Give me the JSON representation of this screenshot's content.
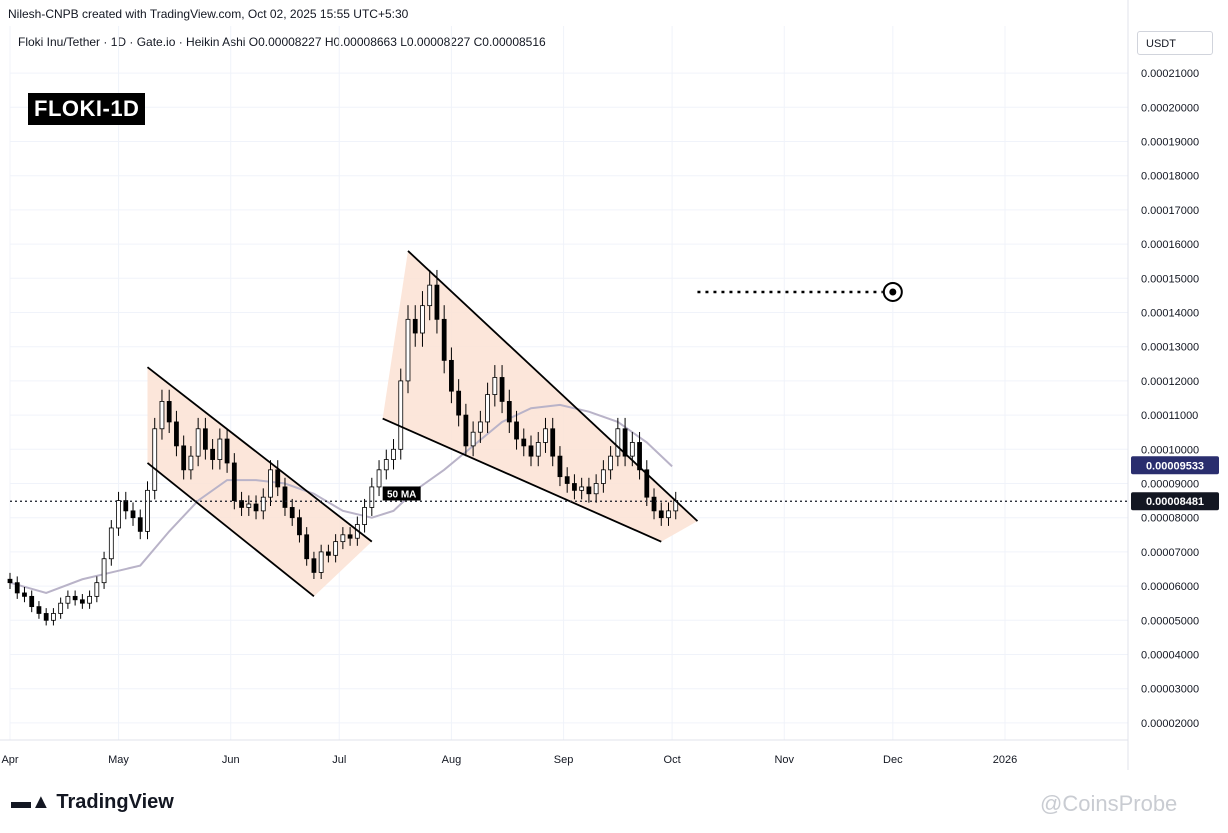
{
  "header": {
    "attribution": "Nilesh-CNPB created with TradingView.com, Oct 02, 2025 15:55 UTC+5:30",
    "symbol_info": "Floki Inu/Tether · 1D · Gate.io · Heikin Ashi  O0.00008227  H0.00008663  L0.00008227  C0.00008516"
  },
  "badge": "FLOKI-1D",
  "currency": "USDT",
  "footer": {
    "brand": "TradingView",
    "watermark": "@CoinsProbe"
  },
  "chart_data": {
    "type": "candlestick",
    "price_axis": {
      "min": 1.5e-05,
      "max": 0.000215,
      "ticks": [
        "0.00021000",
        "0.00020000",
        "0.00019000",
        "0.00018000",
        "0.00017000",
        "0.00016000",
        "0.00015000",
        "0.00014000",
        "0.00013000",
        "0.00012000",
        "0.00011000",
        "0.00010000",
        "0.00009000",
        "0.00008000",
        "0.00007000",
        "0.00006000",
        "0.00005000",
        "0.00004000",
        "0.00003000",
        "0.00002000"
      ],
      "tick_values": [
        0.00021,
        0.0002,
        0.00019,
        0.00018,
        0.00017,
        0.00016,
        0.00015,
        0.00014,
        0.00013,
        0.00012,
        0.00011,
        0.0001,
        9e-05,
        8e-05,
        7e-05,
        6e-05,
        5e-05,
        4e-05,
        3e-05,
        2e-05
      ]
    },
    "time_axis": {
      "labels": [
        "Apr",
        "May",
        "Jun",
        "Jul",
        "Aug",
        "Sep",
        "Oct",
        "Nov",
        "Dec",
        "2026"
      ],
      "label_days": [
        0,
        30,
        61,
        91,
        122,
        153,
        183,
        214,
        244,
        275
      ],
      "range_days": [
        0,
        309
      ]
    },
    "price_labels": [
      {
        "text": "0.00009533",
        "value": 9.533e-05,
        "color": "#2a2e6e"
      },
      {
        "text": "0.00008481",
        "value": 8.481e-05,
        "color": "#131722"
      }
    ],
    "ma_label": "50 MA",
    "ma_color": "#b9b3c8",
    "pattern_fill": "#fbe2d4",
    "candles": [
      {
        "d": 0,
        "o": 6.2e-05,
        "c": 6.1e-05
      },
      {
        "d": 2,
        "o": 6.1e-05,
        "c": 5.8e-05
      },
      {
        "d": 4,
        "o": 5.8e-05,
        "c": 5.7e-05
      },
      {
        "d": 6,
        "o": 5.7e-05,
        "c": 5.4e-05
      },
      {
        "d": 8,
        "o": 5.4e-05,
        "c": 5.2e-05
      },
      {
        "d": 10,
        "o": 5.2e-05,
        "c": 5e-05
      },
      {
        "d": 12,
        "o": 5e-05,
        "c": 5.2e-05
      },
      {
        "d": 14,
        "o": 5.2e-05,
        "c": 5.5e-05
      },
      {
        "d": 16,
        "o": 5.5e-05,
        "c": 5.7e-05
      },
      {
        "d": 18,
        "o": 5.7e-05,
        "c": 5.6e-05
      },
      {
        "d": 20,
        "o": 5.6e-05,
        "c": 5.5e-05
      },
      {
        "d": 22,
        "o": 5.5e-05,
        "c": 5.7e-05
      },
      {
        "d": 24,
        "o": 5.7e-05,
        "c": 6.1e-05
      },
      {
        "d": 26,
        "o": 6.1e-05,
        "c": 6.8e-05
      },
      {
        "d": 28,
        "o": 6.8e-05,
        "c": 7.7e-05
      },
      {
        "d": 30,
        "o": 7.7e-05,
        "c": 8.5e-05
      },
      {
        "d": 32,
        "o": 8.5e-05,
        "c": 8.2e-05
      },
      {
        "d": 34,
        "o": 8.2e-05,
        "c": 8e-05
      },
      {
        "d": 36,
        "o": 8e-05,
        "c": 7.6e-05
      },
      {
        "d": 38,
        "o": 7.6e-05,
        "c": 8.8e-05
      },
      {
        "d": 40,
        "o": 8.8e-05,
        "c": 0.000106
      },
      {
        "d": 42,
        "o": 0.000106,
        "c": 0.000114
      },
      {
        "d": 44,
        "o": 0.000114,
        "c": 0.000108
      },
      {
        "d": 46,
        "o": 0.000108,
        "c": 0.000101
      },
      {
        "d": 48,
        "o": 0.000101,
        "c": 9.4e-05
      },
      {
        "d": 50,
        "o": 9.4e-05,
        "c": 9.8e-05
      },
      {
        "d": 52,
        "o": 9.8e-05,
        "c": 0.000106
      },
      {
        "d": 54,
        "o": 0.000106,
        "c": 0.0001
      },
      {
        "d": 56,
        "o": 0.0001,
        "c": 9.7e-05
      },
      {
        "d": 58,
        "o": 9.7e-05,
        "c": 0.000103
      },
      {
        "d": 60,
        "o": 0.000103,
        "c": 9.6e-05
      },
      {
        "d": 62,
        "o": 9.6e-05,
        "c": 8.5e-05
      },
      {
        "d": 64,
        "o": 8.5e-05,
        "c": 8.3e-05
      },
      {
        "d": 66,
        "o": 8.3e-05,
        "c": 8.4e-05
      },
      {
        "d": 68,
        "o": 8.4e-05,
        "c": 8.2e-05
      },
      {
        "d": 70,
        "o": 8.2e-05,
        "c": 8.6e-05
      },
      {
        "d": 72,
        "o": 8.6e-05,
        "c": 9.4e-05
      },
      {
        "d": 74,
        "o": 9.4e-05,
        "c": 8.9e-05
      },
      {
        "d": 76,
        "o": 8.9e-05,
        "c": 8.3e-05
      },
      {
        "d": 78,
        "o": 8.3e-05,
        "c": 8e-05
      },
      {
        "d": 80,
        "o": 8e-05,
        "c": 7.5e-05
      },
      {
        "d": 82,
        "o": 7.5e-05,
        "c": 6.8e-05
      },
      {
        "d": 84,
        "o": 6.8e-05,
        "c": 6.4e-05
      },
      {
        "d": 86,
        "o": 6.4e-05,
        "c": 7e-05
      },
      {
        "d": 88,
        "o": 7e-05,
        "c": 6.9e-05
      },
      {
        "d": 90,
        "o": 6.9e-05,
        "c": 7.3e-05
      },
      {
        "d": 92,
        "o": 7.3e-05,
        "c": 7.5e-05
      },
      {
        "d": 94,
        "o": 7.5e-05,
        "c": 7.4e-05
      },
      {
        "d": 96,
        "o": 7.4e-05,
        "c": 7.8e-05
      },
      {
        "d": 98,
        "o": 7.8e-05,
        "c": 8.3e-05
      },
      {
        "d": 100,
        "o": 8.3e-05,
        "c": 8.9e-05
      },
      {
        "d": 102,
        "o": 8.9e-05,
        "c": 9.4e-05
      },
      {
        "d": 104,
        "o": 9.4e-05,
        "c": 9.7e-05
      },
      {
        "d": 106,
        "o": 9.7e-05,
        "c": 0.0001
      },
      {
        "d": 108,
        "o": 0.0001,
        "c": 0.00012
      },
      {
        "d": 110,
        "o": 0.00012,
        "c": 0.000138
      },
      {
        "d": 112,
        "o": 0.000138,
        "c": 0.000134
      },
      {
        "d": 114,
        "o": 0.000134,
        "c": 0.000142
      },
      {
        "d": 116,
        "o": 0.000142,
        "c": 0.000148
      },
      {
        "d": 118,
        "o": 0.000148,
        "c": 0.000138
      },
      {
        "d": 120,
        "o": 0.000138,
        "c": 0.000126
      },
      {
        "d": 122,
        "o": 0.000126,
        "c": 0.000117
      },
      {
        "d": 124,
        "o": 0.000117,
        "c": 0.00011
      },
      {
        "d": 126,
        "o": 0.00011,
        "c": 0.000101
      },
      {
        "d": 128,
        "o": 0.000101,
        "c": 0.000105
      },
      {
        "d": 130,
        "o": 0.000105,
        "c": 0.000108
      },
      {
        "d": 132,
        "o": 0.000108,
        "c": 0.000116
      },
      {
        "d": 134,
        "o": 0.000116,
        "c": 0.000121
      },
      {
        "d": 136,
        "o": 0.000121,
        "c": 0.000114
      },
      {
        "d": 138,
        "o": 0.000114,
        "c": 0.000108
      },
      {
        "d": 140,
        "o": 0.000108,
        "c": 0.000103
      },
      {
        "d": 142,
        "o": 0.000103,
        "c": 0.000101
      },
      {
        "d": 144,
        "o": 0.000101,
        "c": 9.8e-05
      },
      {
        "d": 146,
        "o": 9.8e-05,
        "c": 0.000102
      },
      {
        "d": 148,
        "o": 0.000102,
        "c": 0.000106
      },
      {
        "d": 150,
        "o": 0.000106,
        "c": 9.8e-05
      },
      {
        "d": 152,
        "o": 9.8e-05,
        "c": 9.2e-05
      },
      {
        "d": 154,
        "o": 9.2e-05,
        "c": 9e-05
      },
      {
        "d": 156,
        "o": 9e-05,
        "c": 8.8e-05
      },
      {
        "d": 158,
        "o": 8.8e-05,
        "c": 8.9e-05
      },
      {
        "d": 160,
        "o": 8.9e-05,
        "c": 8.7e-05
      },
      {
        "d": 162,
        "o": 8.7e-05,
        "c": 9e-05
      },
      {
        "d": 164,
        "o": 9e-05,
        "c": 9.4e-05
      },
      {
        "d": 166,
        "o": 9.4e-05,
        "c": 9.8e-05
      },
      {
        "d": 168,
        "o": 9.8e-05,
        "c": 0.000106
      },
      {
        "d": 170,
        "o": 0.000106,
        "c": 9.8e-05
      },
      {
        "d": 172,
        "o": 9.8e-05,
        "c": 0.000102
      },
      {
        "d": 174,
        "o": 0.000102,
        "c": 9.4e-05
      },
      {
        "d": 176,
        "o": 9.4e-05,
        "c": 8.6e-05
      },
      {
        "d": 178,
        "o": 8.6e-05,
        "c": 8.2e-05
      },
      {
        "d": 180,
        "o": 8.2e-05,
        "c": 8e-05
      },
      {
        "d": 182,
        "o": 8e-05,
        "c": 8.2e-05
      },
      {
        "d": 184,
        "o": 8.2e-05,
        "c": 8.5e-05
      }
    ],
    "ma_50": [
      {
        "d": 0,
        "v": 6.1e-05
      },
      {
        "d": 10,
        "v": 5.8e-05
      },
      {
        "d": 20,
        "v": 6.2e-05
      },
      {
        "d": 28,
        "v": 6.4e-05
      },
      {
        "d": 36,
        "v": 6.6e-05
      },
      {
        "d": 44,
        "v": 7.6e-05
      },
      {
        "d": 52,
        "v": 8.5e-05
      },
      {
        "d": 60,
        "v": 9.1e-05
      },
      {
        "d": 68,
        "v": 9.1e-05
      },
      {
        "d": 76,
        "v": 9e-05
      },
      {
        "d": 84,
        "v": 8.7e-05
      },
      {
        "d": 92,
        "v": 8.2e-05
      },
      {
        "d": 100,
        "v": 8e-05
      },
      {
        "d": 106,
        "v": 8.2e-05
      },
      {
        "d": 112,
        "v": 8.8e-05
      },
      {
        "d": 120,
        "v": 9.4e-05
      },
      {
        "d": 128,
        "v": 0.000101
      },
      {
        "d": 136,
        "v": 0.000108
      },
      {
        "d": 144,
        "v": 0.000112
      },
      {
        "d": 152,
        "v": 0.000113
      },
      {
        "d": 160,
        "v": 0.000111
      },
      {
        "d": 168,
        "v": 0.000108
      },
      {
        "d": 176,
        "v": 0.000102
      },
      {
        "d": 183,
        "v": 9.5e-05
      }
    ],
    "patterns": [
      {
        "name": "descending-channel",
        "upper": [
          [
            38,
            0.000124
          ],
          [
            100,
            7.3e-05
          ]
        ],
        "lower": [
          [
            38,
            9.6e-05
          ],
          [
            84,
            5.7e-05
          ]
        ]
      },
      {
        "name": "falling-wedge",
        "upper": [
          [
            110,
            0.000158
          ],
          [
            190,
            7.9e-05
          ]
        ],
        "lower": [
          [
            103,
            0.000109
          ],
          [
            180,
            7.3e-05
          ]
        ]
      }
    ],
    "target": {
      "start_day": 190,
      "end_day": 244,
      "value": 0.000146
    }
  }
}
